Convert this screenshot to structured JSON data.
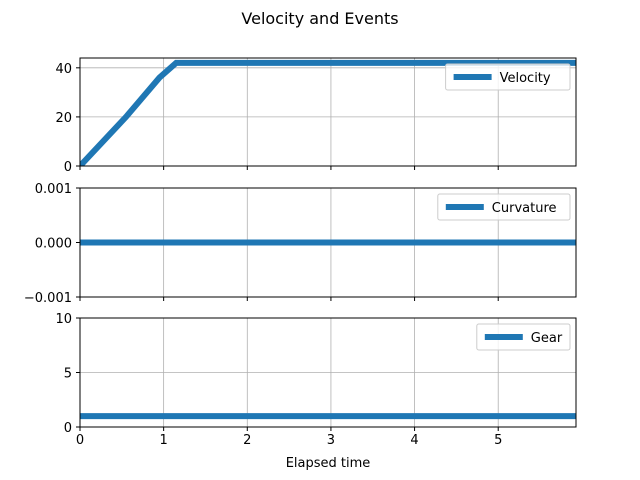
{
  "title": "Velocity and Events",
  "colors": {
    "series": "#1f77b4",
    "grid": "#b0b0b0",
    "axes": "#000000",
    "legend_border": "#cccccc"
  },
  "chart_data": [
    {
      "type": "line",
      "panel": "top",
      "ylim": [
        0,
        44
      ],
      "yticks": [
        0,
        20,
        40
      ],
      "yticklabels": [
        "0",
        "20",
        "40"
      ],
      "xlim": [
        0,
        5.93
      ],
      "xticks": [
        0,
        1,
        2,
        3,
        4,
        5
      ],
      "show_xticklabels": false,
      "grid": true,
      "legend": "upper-right",
      "series": [
        {
          "name": "Velocity",
          "x": [
            0,
            0.55,
            0.95,
            1.15,
            5.93
          ],
          "y": [
            0,
            20,
            36,
            42,
            42
          ]
        }
      ]
    },
    {
      "type": "line",
      "panel": "middle",
      "ylim": [
        -0.001,
        0.001
      ],
      "yticks": [
        -0.001,
        0,
        0.001
      ],
      "yticklabels": [
        "−0.001",
        "0.000",
        "0.001"
      ],
      "xlim": [
        0,
        5.93
      ],
      "xticks": [
        0,
        1,
        2,
        3,
        4,
        5
      ],
      "show_xticklabels": false,
      "grid": true,
      "legend": "upper-right",
      "series": [
        {
          "name": "Curvature",
          "x": [
            0,
            5.93
          ],
          "y": [
            0,
            0
          ]
        }
      ]
    },
    {
      "type": "line",
      "panel": "bottom",
      "ylim": [
        0,
        10
      ],
      "yticks": [
        0,
        5,
        10
      ],
      "yticklabels": [
        "0",
        "5",
        "10"
      ],
      "xlim": [
        0,
        5.93
      ],
      "xticks": [
        0,
        1,
        2,
        3,
        4,
        5
      ],
      "xticklabels": [
        "0",
        "1",
        "2",
        "3",
        "4",
        "5"
      ],
      "show_xticklabels": true,
      "xlabel": "Elapsed time",
      "grid": true,
      "legend": "upper-right",
      "series": [
        {
          "name": "Gear",
          "x": [
            0,
            5.93
          ],
          "y": [
            1,
            1
          ]
        }
      ]
    }
  ]
}
